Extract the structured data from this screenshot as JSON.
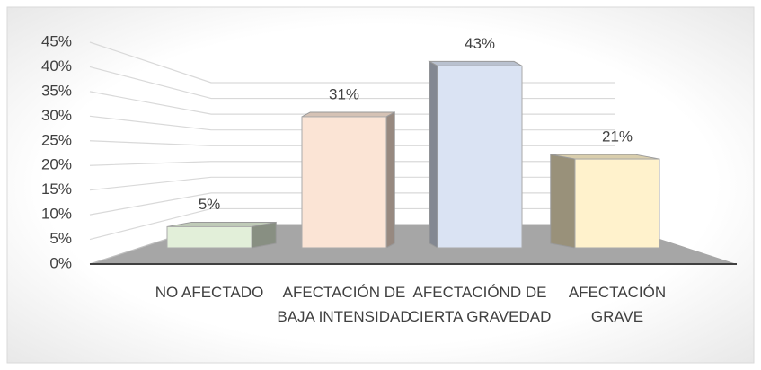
{
  "chart_data": {
    "type": "bar3d",
    "categories": [
      "NO AFECTADO",
      "AFECTACIÓN DE BAJA INTENSIDAD",
      "AFECTACIÓND DE CIERTA GRAVEDAD",
      "AFECTACIÓN GRAVE"
    ],
    "values": [
      5,
      31,
      43,
      21
    ],
    "value_labels": [
      "5%",
      "31%",
      "43%",
      "21%"
    ],
    "colors": [
      "#e2efd9",
      "#fbe4d5",
      "#dae3f3",
      "#fff2cc"
    ],
    "ylim": [
      0,
      45
    ],
    "yticks": [
      {
        "value": 0,
        "label": "0%"
      },
      {
        "value": 5,
        "label": "5%"
      },
      {
        "value": 10,
        "label": "10%"
      },
      {
        "value": 15,
        "label": "15%"
      },
      {
        "value": 20,
        "label": "20%"
      },
      {
        "value": 25,
        "label": "25%"
      },
      {
        "value": 30,
        "label": "30%"
      },
      {
        "value": 35,
        "label": "35%"
      },
      {
        "value": 40,
        "label": "40%"
      },
      {
        "value": 45,
        "label": "45%"
      }
    ],
    "grid": true
  }
}
